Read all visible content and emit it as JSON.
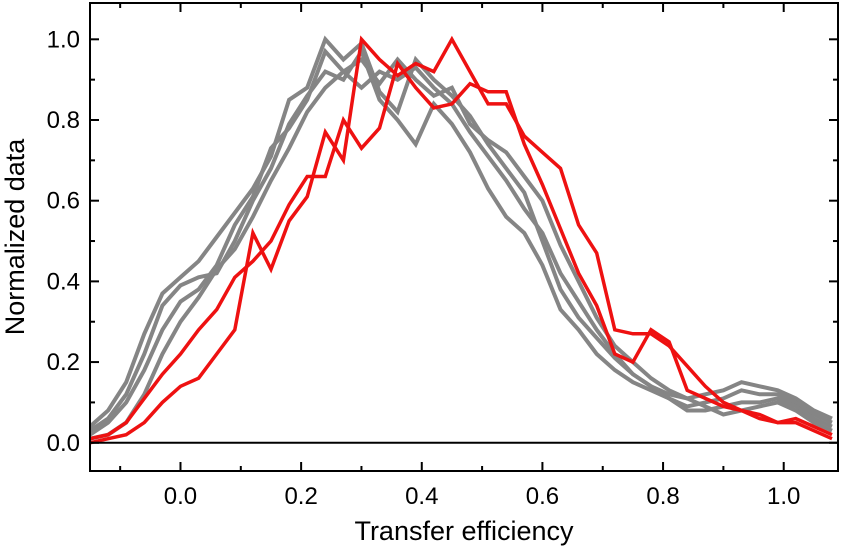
{
  "chart_data": {
    "type": "line",
    "title": "",
    "xlabel": "Transfer efficiency",
    "ylabel": "Normalized data",
    "xlim": [
      -0.15,
      1.09
    ],
    "ylim": [
      -0.07,
      1.09
    ],
    "x_major_ticks": [
      0.0,
      0.2,
      0.4,
      0.6,
      0.8,
      1.0
    ],
    "x_tick_labels": [
      "0.0",
      "0.2",
      "0.4",
      "0.6",
      "0.8",
      "1.0"
    ],
    "x_minor_ticks": [
      -0.1,
      0.1,
      0.3,
      0.5,
      0.7,
      0.9
    ],
    "y_major_ticks": [
      0.0,
      0.2,
      0.4,
      0.6,
      0.8,
      1.0
    ],
    "y_tick_labels": [
      "0.0",
      "0.2",
      "0.4",
      "0.6",
      "0.8",
      "1.0"
    ],
    "y_minor_ticks": [
      0.1,
      0.3,
      0.5,
      0.7,
      0.9
    ],
    "reference_line_y": 0.0,
    "grid": false,
    "colors": {
      "gray": "#858585",
      "red": "#ee1111",
      "axis": "#000000"
    },
    "series": [
      {
        "color": "gray",
        "x": [
          -0.15,
          -0.12,
          -0.09,
          -0.06,
          -0.03,
          0.0,
          0.03,
          0.06,
          0.09,
          0.12,
          0.15,
          0.18,
          0.21,
          0.24,
          0.27,
          0.3,
          0.33,
          0.36,
          0.39,
          0.42,
          0.45,
          0.48,
          0.51,
          0.54,
          0.57,
          0.6,
          0.63,
          0.66,
          0.69,
          0.72,
          0.75,
          0.78,
          0.81,
          0.84,
          0.87,
          0.9,
          0.93,
          0.96,
          0.99,
          1.02,
          1.05,
          1.08
        ],
        "y": [
          0.04,
          0.08,
          0.15,
          0.27,
          0.37,
          0.41,
          0.45,
          0.51,
          0.57,
          0.63,
          0.71,
          0.85,
          0.88,
          1.0,
          0.95,
          0.99,
          0.87,
          0.82,
          0.95,
          0.9,
          0.86,
          0.81,
          0.74,
          0.68,
          0.62,
          0.5,
          0.38,
          0.31,
          0.26,
          0.21,
          0.17,
          0.14,
          0.12,
          0.11,
          0.12,
          0.13,
          0.15,
          0.14,
          0.13,
          0.11,
          0.08,
          0.06
        ]
      },
      {
        "color": "gray",
        "x": [
          -0.15,
          -0.12,
          -0.09,
          -0.06,
          -0.03,
          0.0,
          0.03,
          0.06,
          0.09,
          0.12,
          0.15,
          0.18,
          0.21,
          0.24,
          0.27,
          0.3,
          0.33,
          0.36,
          0.39,
          0.42,
          0.45,
          0.48,
          0.51,
          0.54,
          0.57,
          0.6,
          0.63,
          0.66,
          0.69,
          0.72,
          0.75,
          0.78,
          0.81,
          0.84,
          0.87,
          0.9,
          0.93,
          0.96,
          0.99,
          1.02,
          1.05,
          1.08
        ],
        "y": [
          0.03,
          0.06,
          0.12,
          0.22,
          0.34,
          0.39,
          0.41,
          0.42,
          0.5,
          0.6,
          0.68,
          0.79,
          0.86,
          0.92,
          0.9,
          0.97,
          0.85,
          0.8,
          0.74,
          0.84,
          0.79,
          0.72,
          0.63,
          0.56,
          0.52,
          0.44,
          0.33,
          0.28,
          0.22,
          0.18,
          0.15,
          0.13,
          0.11,
          0.09,
          0.1,
          0.11,
          0.13,
          0.12,
          0.12,
          0.1,
          0.07,
          0.05
        ]
      },
      {
        "color": "gray",
        "x": [
          -0.15,
          -0.12,
          -0.09,
          -0.06,
          -0.03,
          0.0,
          0.03,
          0.06,
          0.09,
          0.12,
          0.15,
          0.18,
          0.21,
          0.24,
          0.27,
          0.3,
          0.33,
          0.36,
          0.39,
          0.42,
          0.45,
          0.48,
          0.51,
          0.54,
          0.57,
          0.6,
          0.63,
          0.66,
          0.69,
          0.72,
          0.75,
          0.78,
          0.81,
          0.84,
          0.87,
          0.9,
          0.93,
          0.96,
          0.99,
          1.02,
          1.05,
          1.08
        ],
        "y": [
          0.02,
          0.05,
          0.1,
          0.18,
          0.28,
          0.35,
          0.38,
          0.44,
          0.54,
          0.61,
          0.73,
          0.78,
          0.85,
          0.97,
          0.92,
          0.88,
          0.92,
          0.9,
          0.93,
          0.88,
          0.84,
          0.77,
          0.71,
          0.65,
          0.58,
          0.52,
          0.42,
          0.35,
          0.28,
          0.22,
          0.17,
          0.14,
          0.11,
          0.08,
          0.08,
          0.09,
          0.1,
          0.1,
          0.11,
          0.09,
          0.06,
          0.04
        ]
      },
      {
        "color": "gray",
        "x": [
          -0.15,
          -0.12,
          -0.09,
          -0.06,
          -0.03,
          0.0,
          0.03,
          0.06,
          0.09,
          0.12,
          0.15,
          0.18,
          0.21,
          0.24,
          0.27,
          0.3,
          0.33,
          0.36,
          0.39,
          0.42,
          0.45,
          0.48,
          0.51,
          0.54,
          0.57,
          0.6,
          0.63,
          0.66,
          0.69,
          0.72,
          0.75,
          0.78,
          0.81,
          0.84,
          0.87,
          0.9,
          0.93,
          0.96,
          0.99,
          1.02,
          1.05,
          1.08
        ],
        "y": [
          0.01,
          0.02,
          0.05,
          0.12,
          0.22,
          0.3,
          0.36,
          0.43,
          0.48,
          0.56,
          0.65,
          0.73,
          0.82,
          0.88,
          0.92,
          0.95,
          0.89,
          0.95,
          0.9,
          0.86,
          0.88,
          0.79,
          0.75,
          0.72,
          0.66,
          0.6,
          0.49,
          0.4,
          0.31,
          0.24,
          0.2,
          0.16,
          0.13,
          0.11,
          0.09,
          0.07,
          0.08,
          0.09,
          0.1,
          0.08,
          0.05,
          0.03
        ]
      },
      {
        "color": "red",
        "x": [
          -0.15,
          -0.12,
          -0.09,
          -0.06,
          -0.03,
          0.0,
          0.03,
          0.06,
          0.09,
          0.12,
          0.15,
          0.18,
          0.21,
          0.24,
          0.27,
          0.3,
          0.33,
          0.36,
          0.39,
          0.42,
          0.45,
          0.48,
          0.51,
          0.54,
          0.57,
          0.6,
          0.63,
          0.66,
          0.69,
          0.72,
          0.75,
          0.78,
          0.81,
          0.84,
          0.87,
          0.9,
          0.93,
          0.96,
          0.99,
          1.02,
          1.05,
          1.08
        ],
        "y": [
          0.01,
          0.02,
          0.05,
          0.11,
          0.17,
          0.22,
          0.28,
          0.33,
          0.41,
          0.45,
          0.5,
          0.59,
          0.66,
          0.66,
          0.8,
          0.73,
          0.78,
          0.94,
          0.88,
          0.83,
          0.84,
          0.89,
          0.87,
          0.87,
          0.74,
          0.64,
          0.53,
          0.42,
          0.34,
          0.22,
          0.2,
          0.28,
          0.25,
          0.13,
          0.11,
          0.09,
          0.08,
          0.07,
          0.05,
          0.05,
          0.03,
          0.01
        ]
      },
      {
        "color": "red",
        "x": [
          -0.15,
          -0.12,
          -0.09,
          -0.06,
          -0.03,
          0.0,
          0.03,
          0.06,
          0.09,
          0.12,
          0.15,
          0.18,
          0.21,
          0.24,
          0.27,
          0.3,
          0.33,
          0.36,
          0.39,
          0.42,
          0.45,
          0.48,
          0.51,
          0.54,
          0.57,
          0.6,
          0.63,
          0.66,
          0.69,
          0.72,
          0.75,
          0.78,
          0.81,
          0.84,
          0.87,
          0.9,
          0.93,
          0.96,
          0.99,
          1.02,
          1.05,
          1.08
        ],
        "y": [
          0.0,
          0.01,
          0.02,
          0.05,
          0.1,
          0.14,
          0.16,
          0.22,
          0.28,
          0.52,
          0.43,
          0.55,
          0.61,
          0.77,
          0.7,
          1.0,
          0.95,
          0.91,
          0.94,
          0.92,
          1.0,
          0.92,
          0.84,
          0.84,
          0.76,
          0.72,
          0.68,
          0.54,
          0.47,
          0.28,
          0.27,
          0.27,
          0.24,
          0.19,
          0.14,
          0.1,
          0.08,
          0.06,
          0.05,
          0.06,
          0.04,
          0.02
        ]
      }
    ]
  }
}
